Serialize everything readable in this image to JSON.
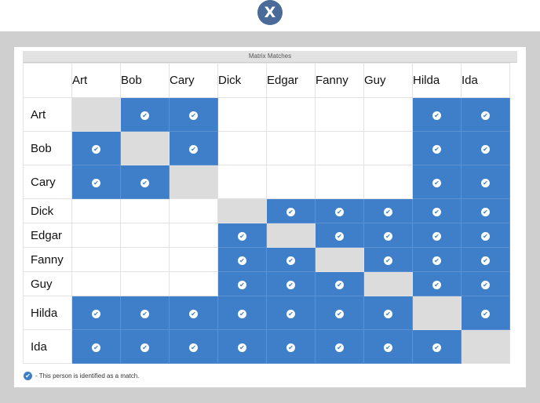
{
  "close_button": {
    "label": "X"
  },
  "matrix": {
    "title": "Matrix Matches",
    "names": [
      "Art",
      "Bob",
      "Cary",
      "Dick",
      "Edgar",
      "Fanny",
      "Guy",
      "Hilda",
      "Ida"
    ],
    "row_heights": [
      43,
      43,
      43,
      31,
      31,
      31,
      31,
      43,
      43
    ],
    "cells": [
      [
        "self",
        "match",
        "match",
        "empty",
        "empty",
        "empty",
        "empty",
        "match",
        "match"
      ],
      [
        "match",
        "self",
        "match",
        "empty",
        "empty",
        "empty",
        "empty",
        "match",
        "match"
      ],
      [
        "match",
        "match",
        "self",
        "empty",
        "empty",
        "empty",
        "empty",
        "match",
        "match"
      ],
      [
        "empty",
        "empty",
        "empty",
        "self",
        "match",
        "match",
        "match",
        "match",
        "match"
      ],
      [
        "empty",
        "empty",
        "empty",
        "match",
        "self",
        "match",
        "match",
        "match",
        "match"
      ],
      [
        "empty",
        "empty",
        "empty",
        "match",
        "match",
        "self",
        "match",
        "match",
        "match"
      ],
      [
        "empty",
        "empty",
        "empty",
        "match",
        "match",
        "match",
        "self",
        "match",
        "match"
      ],
      [
        "match",
        "match",
        "match",
        "match",
        "match",
        "match",
        "match",
        "self",
        "match"
      ],
      [
        "match",
        "match",
        "match",
        "match",
        "match",
        "match",
        "match",
        "match",
        "self"
      ]
    ]
  },
  "legend": {
    "text": "- This person is identified as a match."
  },
  "colors": {
    "match": "#3f7fca",
    "self": "#dcdcdc",
    "frame": "#cfcfcf",
    "close": "#4a6a9a"
  },
  "icons": {
    "match": "check-icon",
    "close": "close-icon"
  }
}
